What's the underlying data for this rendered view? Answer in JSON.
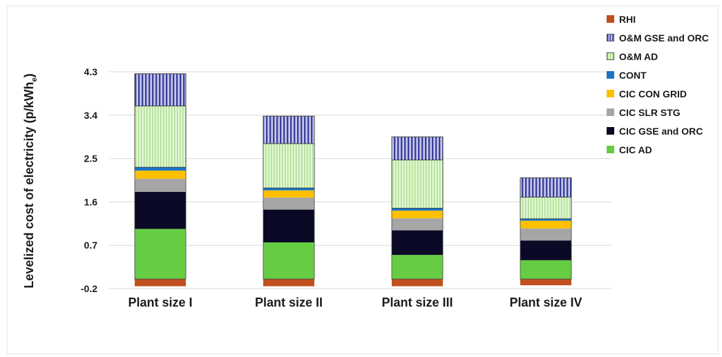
{
  "chart_data": {
    "type": "bar",
    "stacked": true,
    "title": "",
    "xlabel": "",
    "ylabel": "Levelized cost of electricity (p/kWh",
    "ylabel_sub": "e",
    "ylabel_close": ")",
    "ylim": [
      -0.2,
      4.3
    ],
    "yticks": [
      "-0.2",
      "0.7",
      "1.6",
      "2.5",
      "3.4",
      "4.3"
    ],
    "ytick_values": [
      -0.2,
      0.7,
      1.6,
      2.5,
      3.4,
      4.3
    ],
    "grid": true,
    "legend_position": "right",
    "categories": [
      "Plant size I",
      "Plant size II",
      "Plant size III",
      "Plant size IV"
    ],
    "series": [
      {
        "name": "RHI",
        "color": "#c0501f",
        "pattern": "solid",
        "values": [
          -0.15,
          -0.15,
          -0.15,
          -0.13
        ]
      },
      {
        "name": "CIC AD",
        "color": "#66cc44",
        "pattern": "solid",
        "values": [
          1.04,
          0.76,
          0.5,
          0.39
        ]
      },
      {
        "name": "CIC GSE and ORC",
        "color": "#0a0a26",
        "pattern": "solid",
        "values": [
          0.77,
          0.68,
          0.51,
          0.41
        ]
      },
      {
        "name": "CIC SLR  STG",
        "color": "#a6a6a6",
        "pattern": "solid",
        "values": [
          0.27,
          0.25,
          0.25,
          0.25
        ]
      },
      {
        "name": "CIC CON GRID",
        "color": "#ffc000",
        "pattern": "solid",
        "values": [
          0.17,
          0.15,
          0.16,
          0.16
        ]
      },
      {
        "name": "CONT",
        "color": "#1a73c8",
        "pattern": "solid",
        "values": [
          0.07,
          0.05,
          0.05,
          0.04
        ]
      },
      {
        "name": "O&M AD",
        "color": "#cdf0b4",
        "pattern": "vertical-lines",
        "values": [
          1.27,
          0.92,
          1.0,
          0.45
        ]
      },
      {
        "name": "O&M GSE and ORC",
        "color": "#8b8fcc",
        "pattern": "vertical-lines",
        "values": [
          0.67,
          0.57,
          0.48,
          0.4
        ]
      }
    ],
    "legend_order": [
      "RHI",
      "O&M GSE and ORC",
      "O&M AD",
      "CONT",
      "CIC CON GRID",
      "CIC SLR  STG",
      "CIC GSE and ORC",
      "CIC AD"
    ]
  }
}
